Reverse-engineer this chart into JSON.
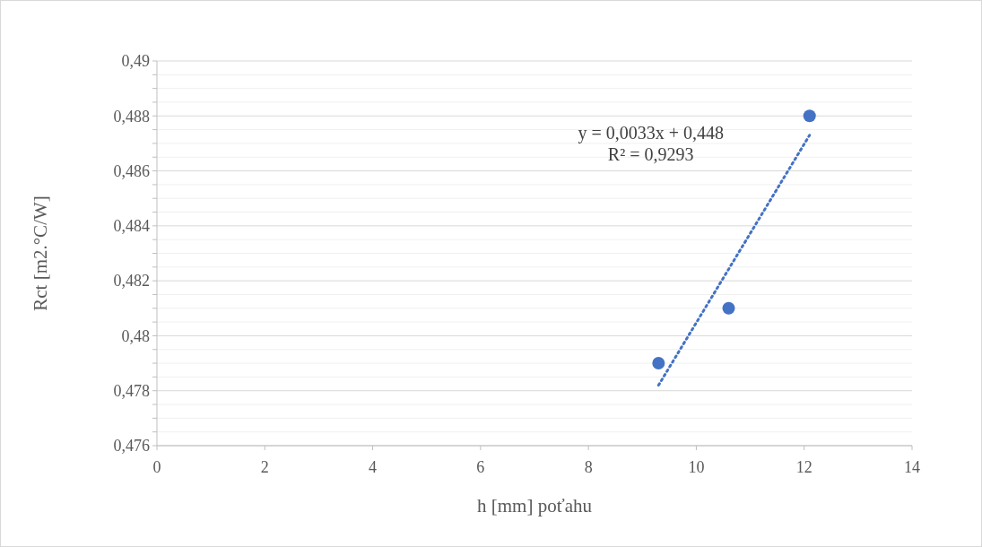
{
  "chart_data": {
    "type": "scatter",
    "xlabel": "h [mm] poťahu",
    "ylabel": "Rct [m2.°C/W]",
    "xlim": [
      0,
      14
    ],
    "xticks": [
      0,
      2,
      4,
      6,
      8,
      10,
      12,
      14
    ],
    "ylim": [
      0.476,
      0.49
    ],
    "yticks": [
      {
        "value": 0.476,
        "label": "0,476"
      },
      {
        "value": 0.4765,
        "label": null
      },
      {
        "value": 0.477,
        "label": null
      },
      {
        "value": 0.4775,
        "label": null
      },
      {
        "value": 0.478,
        "label": "0,478"
      },
      {
        "value": 0.4785,
        "label": null
      },
      {
        "value": 0.479,
        "label": null
      },
      {
        "value": 0.4795,
        "label": null
      },
      {
        "value": 0.48,
        "label": "0,48"
      },
      {
        "value": 0.4805,
        "label": null
      },
      {
        "value": 0.481,
        "label": null
      },
      {
        "value": 0.4815,
        "label": null
      },
      {
        "value": 0.482,
        "label": "0,482"
      },
      {
        "value": 0.4825,
        "label": null
      },
      {
        "value": 0.483,
        "label": null
      },
      {
        "value": 0.4835,
        "label": null
      },
      {
        "value": 0.484,
        "label": "0,484"
      },
      {
        "value": 0.4845,
        "label": null
      },
      {
        "value": 0.485,
        "label": null
      },
      {
        "value": 0.4855,
        "label": null
      },
      {
        "value": 0.486,
        "label": "0,486"
      },
      {
        "value": 0.4865,
        "label": null
      },
      {
        "value": 0.487,
        "label": null
      },
      {
        "value": 0.4875,
        "label": null
      },
      {
        "value": 0.488,
        "label": "0,488"
      },
      {
        "value": 0.4885,
        "label": null
      },
      {
        "value": 0.489,
        "label": null
      },
      {
        "value": 0.4895,
        "label": null
      },
      {
        "value": 0.49,
        "label": "0,49"
      }
    ],
    "grid": "y",
    "marker": "circle",
    "series": [
      {
        "color": "#4472c4",
        "x": [
          9.3,
          10.6,
          12.1
        ],
        "values": [
          0.479,
          0.481,
          0.488
        ]
      },
      {
        "type": "line",
        "color": "#4472c4",
        "line_style": "dotted",
        "marker": "none",
        "x": [
          9.3,
          12.1
        ],
        "values": [
          0.4782,
          0.4873
        ]
      }
    ],
    "annotations": [
      "y = 0,0033x + 0,448",
      "R² = 0,9293"
    ]
  }
}
